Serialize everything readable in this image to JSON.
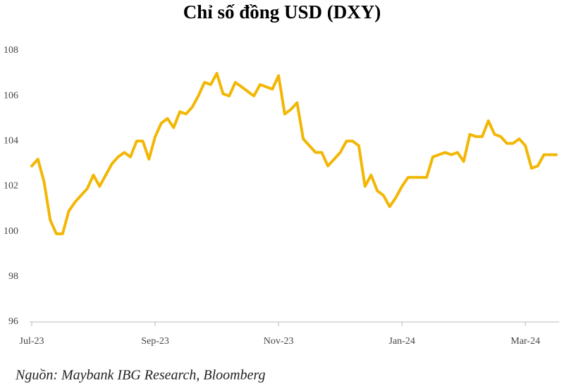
{
  "chart_data": {
    "type": "line",
    "title": "Chỉ số đồng USD (DXY)",
    "source": "Nguồn: Maybank IBG Research, Bloomberg",
    "categories": [
      "Jul-23",
      null,
      null,
      null,
      null,
      null,
      null,
      null,
      null,
      null,
      null,
      null,
      null,
      null,
      null,
      null,
      null,
      null,
      null,
      null,
      "Sep-23",
      null,
      null,
      null,
      null,
      null,
      null,
      null,
      null,
      null,
      null,
      null,
      null,
      null,
      null,
      null,
      null,
      null,
      null,
      null,
      "Nov-23",
      null,
      null,
      null,
      null,
      null,
      null,
      null,
      null,
      null,
      null,
      null,
      null,
      null,
      null,
      null,
      null,
      null,
      null,
      null,
      "Jan-24",
      null,
      null,
      null,
      null,
      null,
      null,
      null,
      null,
      null,
      null,
      null,
      null,
      null,
      null,
      null,
      null,
      null,
      null,
      null,
      "Mar-24",
      null,
      null,
      null,
      null,
      null
    ],
    "series": [
      {
        "name": "DXY",
        "color": "#f2b705",
        "values": [
          102.9,
          103.2,
          102.2,
          100.5,
          99.9,
          99.9,
          100.9,
          101.3,
          101.6,
          101.9,
          102.5,
          102.0,
          102.5,
          103.0,
          103.3,
          103.5,
          103.3,
          104.0,
          104.0,
          103.2,
          104.2,
          104.8,
          105.0,
          104.6,
          105.3,
          105.2,
          105.5,
          106.0,
          106.6,
          106.5,
          107.0,
          106.1,
          106.0,
          106.6,
          106.4,
          106.2,
          106.0,
          106.5,
          106.4,
          106.3,
          106.9,
          105.2,
          105.4,
          105.7,
          104.1,
          103.8,
          103.5,
          103.5,
          102.9,
          103.2,
          103.5,
          104.0,
          104.0,
          103.8,
          102.0,
          102.5,
          101.8,
          101.6,
          101.1,
          101.5,
          102.0,
          102.4,
          102.4,
          102.4,
          102.4,
          103.3,
          103.4,
          103.5,
          103.4,
          103.5,
          103.1,
          104.3,
          104.2,
          104.2,
          104.9,
          104.3,
          104.2,
          103.9,
          103.9,
          104.1,
          103.8,
          102.8,
          102.9,
          103.4,
          103.4,
          103.4
        ]
      }
    ],
    "ylim": [
      96,
      108
    ],
    "yticks": [
      96,
      98,
      100,
      102,
      104,
      106,
      108
    ],
    "grid": false
  }
}
